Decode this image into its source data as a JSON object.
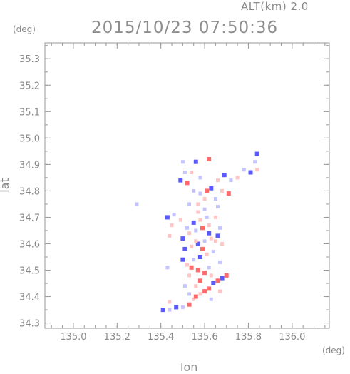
{
  "header": {
    "altitude_label": "ALT(km) 2.0",
    "timestamp": "2015/10/23 07:50:36"
  },
  "chart_data": {
    "type": "scatter",
    "title": "2015/10/23 07:50:36",
    "subtitle": "ALT(km) 2.0",
    "xlabel": "lon",
    "ylabel": "lat",
    "xunit": "(deg)",
    "yunit": "(deg)",
    "xlim": [
      134.87,
      136.17
    ],
    "ylim": [
      34.28,
      35.36
    ],
    "xticks": [
      "135.0",
      "135.2",
      "135.4",
      "135.6",
      "135.8",
      "136.0"
    ],
    "yticks": [
      "34.3",
      "34.4",
      "34.5",
      "34.6",
      "34.7",
      "34.8",
      "34.9",
      "35.0",
      "35.1",
      "35.2",
      "35.3"
    ],
    "grid": false,
    "colors": {
      "positive": "#ff6b6b",
      "negative": "#5a5aff",
      "light_positive": "#ffc4c4",
      "light_negative": "#c4c4ff",
      "axis": "#9a9a9a"
    },
    "series": [
      {
        "values": [
          {
            "x": 135.41,
            "y": 34.35,
            "v": -1
          },
          {
            "x": 135.44,
            "y": 34.35,
            "v": -0.5
          },
          {
            "x": 135.47,
            "y": 34.36,
            "v": -1
          },
          {
            "x": 135.5,
            "y": 34.36,
            "v": -0.5
          },
          {
            "x": 135.53,
            "y": 34.37,
            "v": 1
          },
          {
            "x": 135.55,
            "y": 34.39,
            "v": 0.5
          },
          {
            "x": 135.56,
            "y": 34.4,
            "v": 1
          },
          {
            "x": 135.58,
            "y": 34.41,
            "v": 0.5
          },
          {
            "x": 135.6,
            "y": 34.42,
            "v": 1
          },
          {
            "x": 135.62,
            "y": 34.43,
            "v": 1
          },
          {
            "x": 135.64,
            "y": 34.45,
            "v": -1
          },
          {
            "x": 135.66,
            "y": 34.46,
            "v": 1
          },
          {
            "x": 135.68,
            "y": 34.47,
            "v": -1
          },
          {
            "x": 135.63,
            "y": 34.48,
            "v": 0.5
          },
          {
            "x": 135.6,
            "y": 34.49,
            "v": 1
          },
          {
            "x": 135.57,
            "y": 34.5,
            "v": 1
          },
          {
            "x": 135.54,
            "y": 34.51,
            "v": 1
          },
          {
            "x": 135.52,
            "y": 34.52,
            "v": 0.5
          },
          {
            "x": 135.55,
            "y": 34.54,
            "v": -0.5
          },
          {
            "x": 135.58,
            "y": 34.55,
            "v": -1
          },
          {
            "x": 135.61,
            "y": 34.56,
            "v": 0.5
          },
          {
            "x": 135.64,
            "y": 34.57,
            "v": -0.5
          },
          {
            "x": 135.51,
            "y": 34.58,
            "v": -1
          },
          {
            "x": 135.54,
            "y": 34.59,
            "v": 0.5
          },
          {
            "x": 135.57,
            "y": 34.6,
            "v": -1
          },
          {
            "x": 135.6,
            "y": 34.61,
            "v": -0.5
          },
          {
            "x": 135.63,
            "y": 34.62,
            "v": 0.5
          },
          {
            "x": 135.66,
            "y": 34.63,
            "v": -1
          },
          {
            "x": 135.53,
            "y": 34.64,
            "v": 0.5
          },
          {
            "x": 135.56,
            "y": 34.65,
            "v": -0.5
          },
          {
            "x": 135.59,
            "y": 34.66,
            "v": 1
          },
          {
            "x": 135.62,
            "y": 34.67,
            "v": 0.5
          },
          {
            "x": 135.55,
            "y": 34.68,
            "v": -1
          },
          {
            "x": 135.58,
            "y": 34.69,
            "v": 0.5
          },
          {
            "x": 135.61,
            "y": 34.7,
            "v": -0.5
          },
          {
            "x": 135.57,
            "y": 34.72,
            "v": 0.5
          },
          {
            "x": 135.6,
            "y": 34.73,
            "v": -0.5
          },
          {
            "x": 135.52,
            "y": 34.66,
            "v": -0.5
          },
          {
            "x": 135.5,
            "y": 34.62,
            "v": -1
          },
          {
            "x": 135.49,
            "y": 34.69,
            "v": 0.5
          },
          {
            "x": 135.46,
            "y": 34.71,
            "v": -0.5
          },
          {
            "x": 135.43,
            "y": 34.7,
            "v": -1
          },
          {
            "x": 135.45,
            "y": 34.67,
            "v": 0.5
          },
          {
            "x": 135.65,
            "y": 34.7,
            "v": 0.5
          },
          {
            "x": 135.67,
            "y": 34.66,
            "v": -0.5
          },
          {
            "x": 135.68,
            "y": 34.6,
            "v": 0.5
          },
          {
            "x": 135.67,
            "y": 34.53,
            "v": -0.5
          },
          {
            "x": 135.7,
            "y": 34.48,
            "v": 1
          },
          {
            "x": 135.6,
            "y": 34.77,
            "v": 0.5
          },
          {
            "x": 135.61,
            "y": 34.8,
            "v": 1
          },
          {
            "x": 135.58,
            "y": 34.79,
            "v": -0.5
          },
          {
            "x": 135.63,
            "y": 34.81,
            "v": -1
          },
          {
            "x": 135.66,
            "y": 34.84,
            "v": 0.5
          },
          {
            "x": 135.69,
            "y": 34.86,
            "v": -1
          },
          {
            "x": 135.72,
            "y": 34.84,
            "v": -0.5
          },
          {
            "x": 135.68,
            "y": 34.8,
            "v": 0.5
          },
          {
            "x": 135.65,
            "y": 34.77,
            "v": -0.5
          },
          {
            "x": 135.71,
            "y": 34.79,
            "v": 1
          },
          {
            "x": 135.55,
            "y": 34.8,
            "v": -0.5
          },
          {
            "x": 135.52,
            "y": 34.83,
            "v": 1
          },
          {
            "x": 135.49,
            "y": 34.84,
            "v": -1
          },
          {
            "x": 135.51,
            "y": 34.87,
            "v": -0.5
          },
          {
            "x": 135.54,
            "y": 34.87,
            "v": 0.5
          },
          {
            "x": 135.56,
            "y": 34.91,
            "v": -1
          },
          {
            "x": 135.5,
            "y": 34.91,
            "v": -0.5
          },
          {
            "x": 135.62,
            "y": 34.92,
            "v": 1
          },
          {
            "x": 135.58,
            "y": 34.85,
            "v": -0.5
          },
          {
            "x": 135.78,
            "y": 34.88,
            "v": -0.5
          },
          {
            "x": 135.81,
            "y": 34.87,
            "v": -1
          },
          {
            "x": 135.84,
            "y": 34.88,
            "v": 0.5
          },
          {
            "x": 135.83,
            "y": 34.91,
            "v": -0.5
          },
          {
            "x": 135.84,
            "y": 34.94,
            "v": -1
          },
          {
            "x": 135.75,
            "y": 34.85,
            "v": 0.5
          },
          {
            "x": 135.53,
            "y": 34.48,
            "v": 0.5
          },
          {
            "x": 135.58,
            "y": 34.46,
            "v": 1
          },
          {
            "x": 135.62,
            "y": 34.51,
            "v": -0.5
          },
          {
            "x": 135.5,
            "y": 34.54,
            "v": -1
          },
          {
            "x": 135.59,
            "y": 34.58,
            "v": 1
          },
          {
            "x": 135.62,
            "y": 34.64,
            "v": -1
          },
          {
            "x": 135.65,
            "y": 34.61,
            "v": 0.5
          },
          {
            "x": 135.56,
            "y": 34.61,
            "v": 0.5
          },
          {
            "x": 135.51,
            "y": 34.44,
            "v": -0.5
          },
          {
            "x": 135.56,
            "y": 34.44,
            "v": 0.5
          },
          {
            "x": 135.67,
            "y": 34.42,
            "v": 0.5
          },
          {
            "x": 135.63,
            "y": 34.39,
            "v": -0.5
          },
          {
            "x": 135.44,
            "y": 34.38,
            "v": 0.5
          },
          {
            "x": 135.53,
            "y": 34.41,
            "v": -0.5
          },
          {
            "x": 135.29,
            "y": 34.75,
            "v": -0.5
          },
          {
            "x": 135.43,
            "y": 34.51,
            "v": -0.5
          },
          {
            "x": 135.44,
            "y": 34.63,
            "v": 0.5
          },
          {
            "x": 135.57,
            "y": 34.75,
            "v": 0.5
          },
          {
            "x": 135.53,
            "y": 34.75,
            "v": -0.5
          },
          {
            "x": 135.66,
            "y": 34.74,
            "v": -0.5
          }
        ]
      }
    ]
  }
}
